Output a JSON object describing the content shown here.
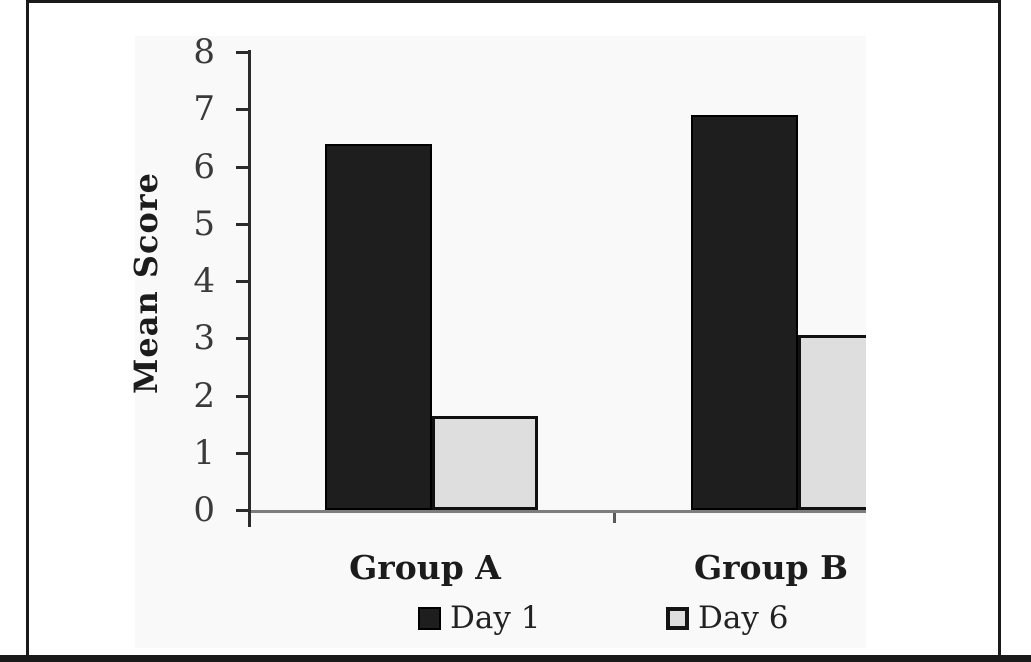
{
  "figure": {
    "frame_color": "#1a1a1a",
    "background_color": "#ffffff"
  },
  "chart_data": {
    "type": "bar",
    "title": "",
    "categories": [
      "Group A",
      "Group B"
    ],
    "series": [
      {
        "name": "Day 1",
        "values": [
          6.4,
          6.9
        ],
        "fill": "#1e1e1e",
        "outline": "#000000"
      },
      {
        "name": "Day 6",
        "values": [
          1.65,
          3.05
        ],
        "fill": "#dedede",
        "outline": "#111111"
      }
    ],
    "xlabel": "",
    "ylabel": "Mean Score",
    "ylim": [
      0,
      8
    ],
    "yticks": [
      0,
      1,
      2,
      3,
      4,
      5,
      6,
      7,
      8
    ],
    "grid": false,
    "legend_position": "bottom",
    "axis_color": "#2b2b2b",
    "baseline_color": "#7d7d7d"
  }
}
